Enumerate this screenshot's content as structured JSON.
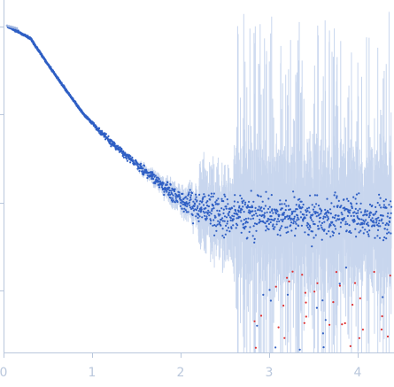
{
  "chart_data": {
    "type": "scatter",
    "title": "",
    "xlabel": "",
    "ylabel": "",
    "xlim": [
      0,
      4.4
    ],
    "y_scale": "log",
    "grid": false,
    "x_ticks": [
      {
        "value": 0,
        "label": "0"
      },
      {
        "value": 1,
        "label": "1"
      },
      {
        "value": 2,
        "label": "2"
      },
      {
        "value": 3,
        "label": "3"
      },
      {
        "value": 4,
        "label": "4"
      }
    ],
    "y_tick_count": 4,
    "trend": [
      [
        0.05,
        1.0
      ],
      [
        0.3,
        0.95
      ],
      [
        0.6,
        0.78
      ],
      [
        0.9,
        0.62
      ],
      [
        1.2,
        0.5
      ],
      [
        1.5,
        0.4
      ],
      [
        1.8,
        0.31
      ],
      [
        2.0,
        0.25
      ],
      [
        2.2,
        0.21
      ],
      [
        2.5,
        0.18
      ],
      [
        3.0,
        0.17
      ],
      [
        3.5,
        0.17
      ],
      [
        4.0,
        0.17
      ],
      [
        4.4,
        0.16
      ]
    ],
    "series": [
      {
        "color": "#2f5fc4",
        "error_color": "#c8d6ee",
        "marker": "dot"
      },
      {
        "color": "#e03030",
        "marker": "dot",
        "note_hidden": ""
      }
    ],
    "colors": {
      "axis": "#b9c7dc",
      "points": "#2f5fc4",
      "errorbars": "#c8d6ee",
      "outliers": "#e03030"
    }
  }
}
